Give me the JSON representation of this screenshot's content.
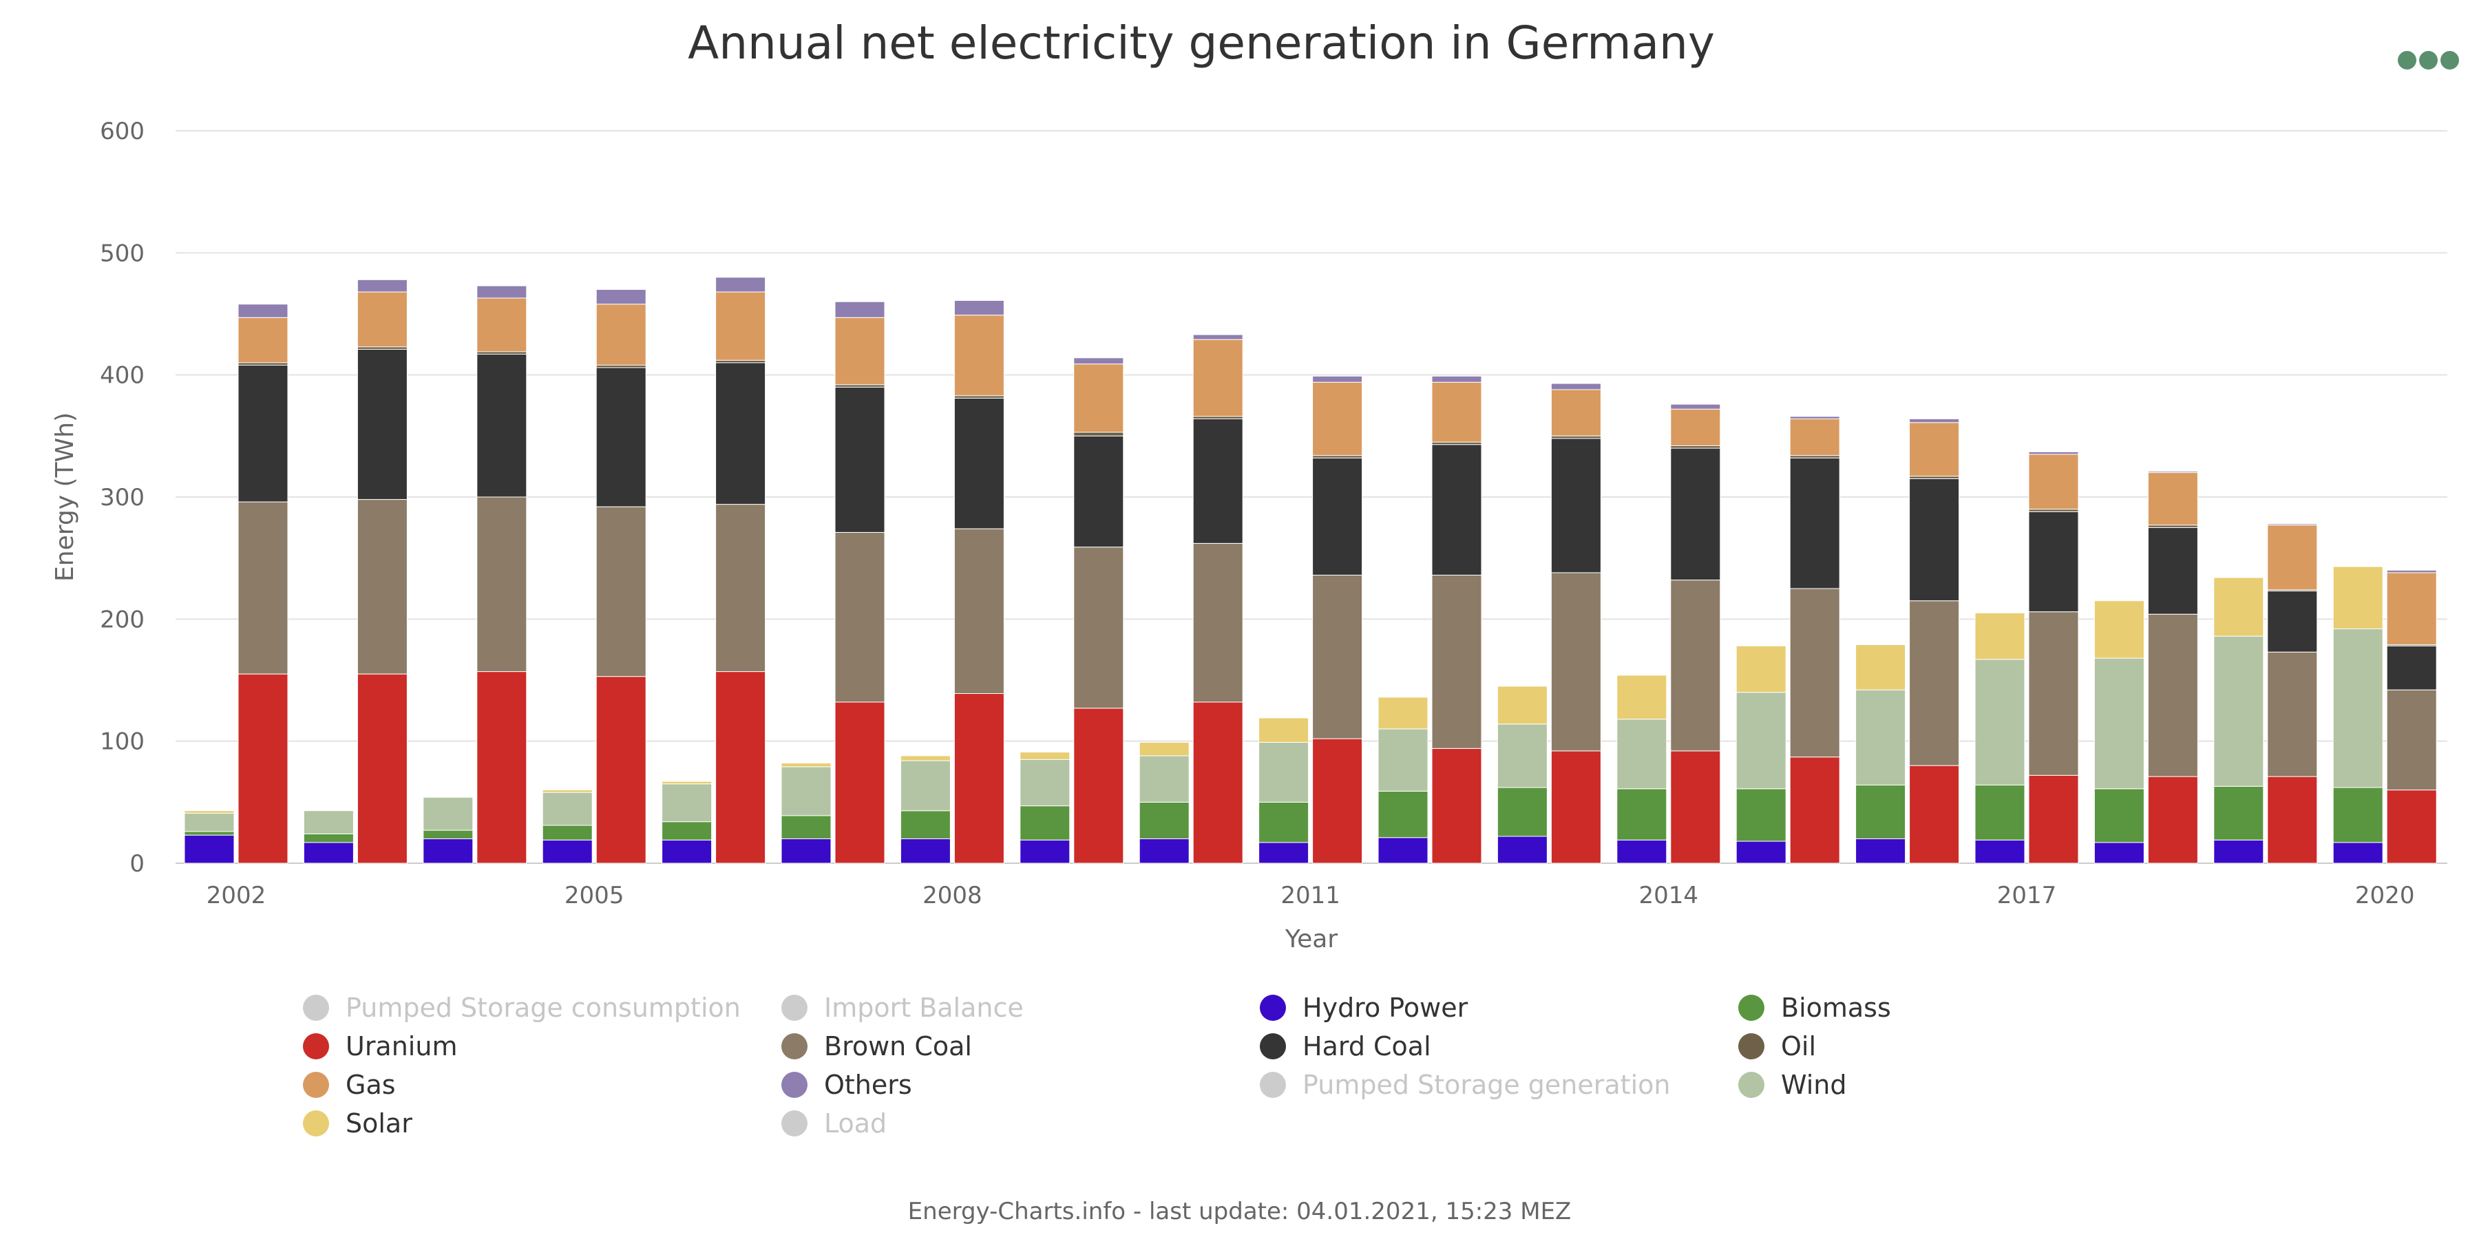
{
  "chart_data": {
    "type": "bar",
    "stacked": true,
    "title": "Annual net electricity generation in Germany",
    "xlabel": "Year",
    "ylabel": "Energy (TWh)",
    "ylim": [
      0,
      600
    ],
    "yticks": [
      0,
      100,
      200,
      300,
      400,
      500,
      600
    ],
    "xtick_labels": [
      "2002",
      "2005",
      "2008",
      "2011",
      "2014",
      "2017",
      "2020"
    ],
    "grid": true,
    "legend_position": "bottom",
    "years": [
      2002,
      2003,
      2004,
      2005,
      2006,
      2007,
      2008,
      2009,
      2010,
      2011,
      2012,
      2013,
      2014,
      2015,
      2016,
      2017,
      2018,
      2019,
      2020
    ],
    "renewables_group": {
      "series": [
        {
          "name": "Hydro Power",
          "color": "#3a0ac9",
          "values": [
            23,
            17,
            20,
            19,
            19,
            20,
            20,
            19,
            20,
            17,
            21,
            22,
            19,
            18,
            20,
            19,
            17,
            19,
            17
          ]
        },
        {
          "name": "Biomass",
          "color": "#5a9640",
          "values": [
            3,
            7,
            7,
            12,
            15,
            19,
            23,
            28,
            30,
            33,
            38,
            40,
            42,
            43,
            44,
            45,
            44,
            44,
            45
          ]
        },
        {
          "name": "Wind",
          "color": "#b3c4a4",
          "values": [
            15,
            19,
            27,
            27,
            31,
            40,
            41,
            38,
            38,
            49,
            51,
            52,
            57,
            79,
            78,
            103,
            107,
            123,
            130
          ]
        },
        {
          "name": "Solar",
          "color": "#e8cd72",
          "values": [
            2,
            0,
            0,
            2,
            2,
            3,
            4,
            6,
            11,
            20,
            26,
            31,
            36,
            38,
            37,
            38,
            47,
            48,
            51
          ]
        }
      ]
    },
    "conventional_group": {
      "series": [
        {
          "name": "Uranium",
          "color": "#cc2b28",
          "values": [
            155,
            155,
            157,
            153,
            157,
            132,
            139,
            127,
            132,
            102,
            94,
            92,
            92,
            87,
            80,
            72,
            71,
            71,
            60
          ]
        },
        {
          "name": "Brown Coal",
          "color": "#8c7b66",
          "values": [
            141,
            143,
            143,
            139,
            137,
            139,
            135,
            132,
            130,
            134,
            142,
            146,
            140,
            138,
            135,
            134,
            133,
            102,
            82
          ]
        },
        {
          "name": "Hard Coal",
          "color": "#353535",
          "values": [
            112,
            123,
            117,
            114,
            116,
            119,
            107,
            91,
            102,
            96,
            107,
            110,
            108,
            107,
            100,
            82,
            71,
            50,
            36
          ]
        },
        {
          "name": "Oil",
          "color": "#6e6049",
          "values": [
            2,
            2,
            2,
            2,
            2,
            2,
            2,
            3,
            2,
            2,
            2,
            2,
            2,
            2,
            2,
            2,
            2,
            1,
            1
          ]
        },
        {
          "name": "Gas",
          "color": "#d99a5f",
          "values": [
            37,
            45,
            44,
            50,
            56,
            55,
            66,
            56,
            63,
            60,
            49,
            38,
            30,
            30,
            44,
            45,
            43,
            53,
            59
          ]
        },
        {
          "name": "Others",
          "color": "#8e7fb0",
          "values": [
            11,
            10,
            10,
            12,
            12,
            13,
            12,
            5,
            4,
            5,
            5,
            5,
            4,
            2,
            3,
            2,
            1,
            1,
            2
          ]
        }
      ]
    }
  },
  "legend": [
    {
      "name": "Pumped Storage consumption",
      "color": "#cccccc",
      "visible": false
    },
    {
      "name": "Import Balance",
      "color": "#cccccc",
      "visible": false
    },
    {
      "name": "Hydro Power",
      "color": "#3a0ac9",
      "visible": true
    },
    {
      "name": "Biomass",
      "color": "#5a9640",
      "visible": true
    },
    {
      "name": "Uranium",
      "color": "#cc2b28",
      "visible": true
    },
    {
      "name": "Brown Coal",
      "color": "#8c7b66",
      "visible": true
    },
    {
      "name": "Hard Coal",
      "color": "#353535",
      "visible": true
    },
    {
      "name": "Oil",
      "color": "#6e6049",
      "visible": true
    },
    {
      "name": "Gas",
      "color": "#d99a5f",
      "visible": true
    },
    {
      "name": "Others",
      "color": "#8e7fb0",
      "visible": true
    },
    {
      "name": "Pumped Storage generation",
      "color": "#cccccc",
      "visible": false
    },
    {
      "name": "Wind",
      "color": "#b3c4a4",
      "visible": true
    },
    {
      "name": "Solar",
      "color": "#e8cd72",
      "visible": true
    },
    {
      "name": "Load",
      "color": "#cccccc",
      "visible": false
    }
  ],
  "menu_icon": "ellipsis-menu-icon",
  "menu_color": "#5a8f6e",
  "footer": "Energy-Charts.info - last update: 04.01.2021, 15:23 MEZ"
}
